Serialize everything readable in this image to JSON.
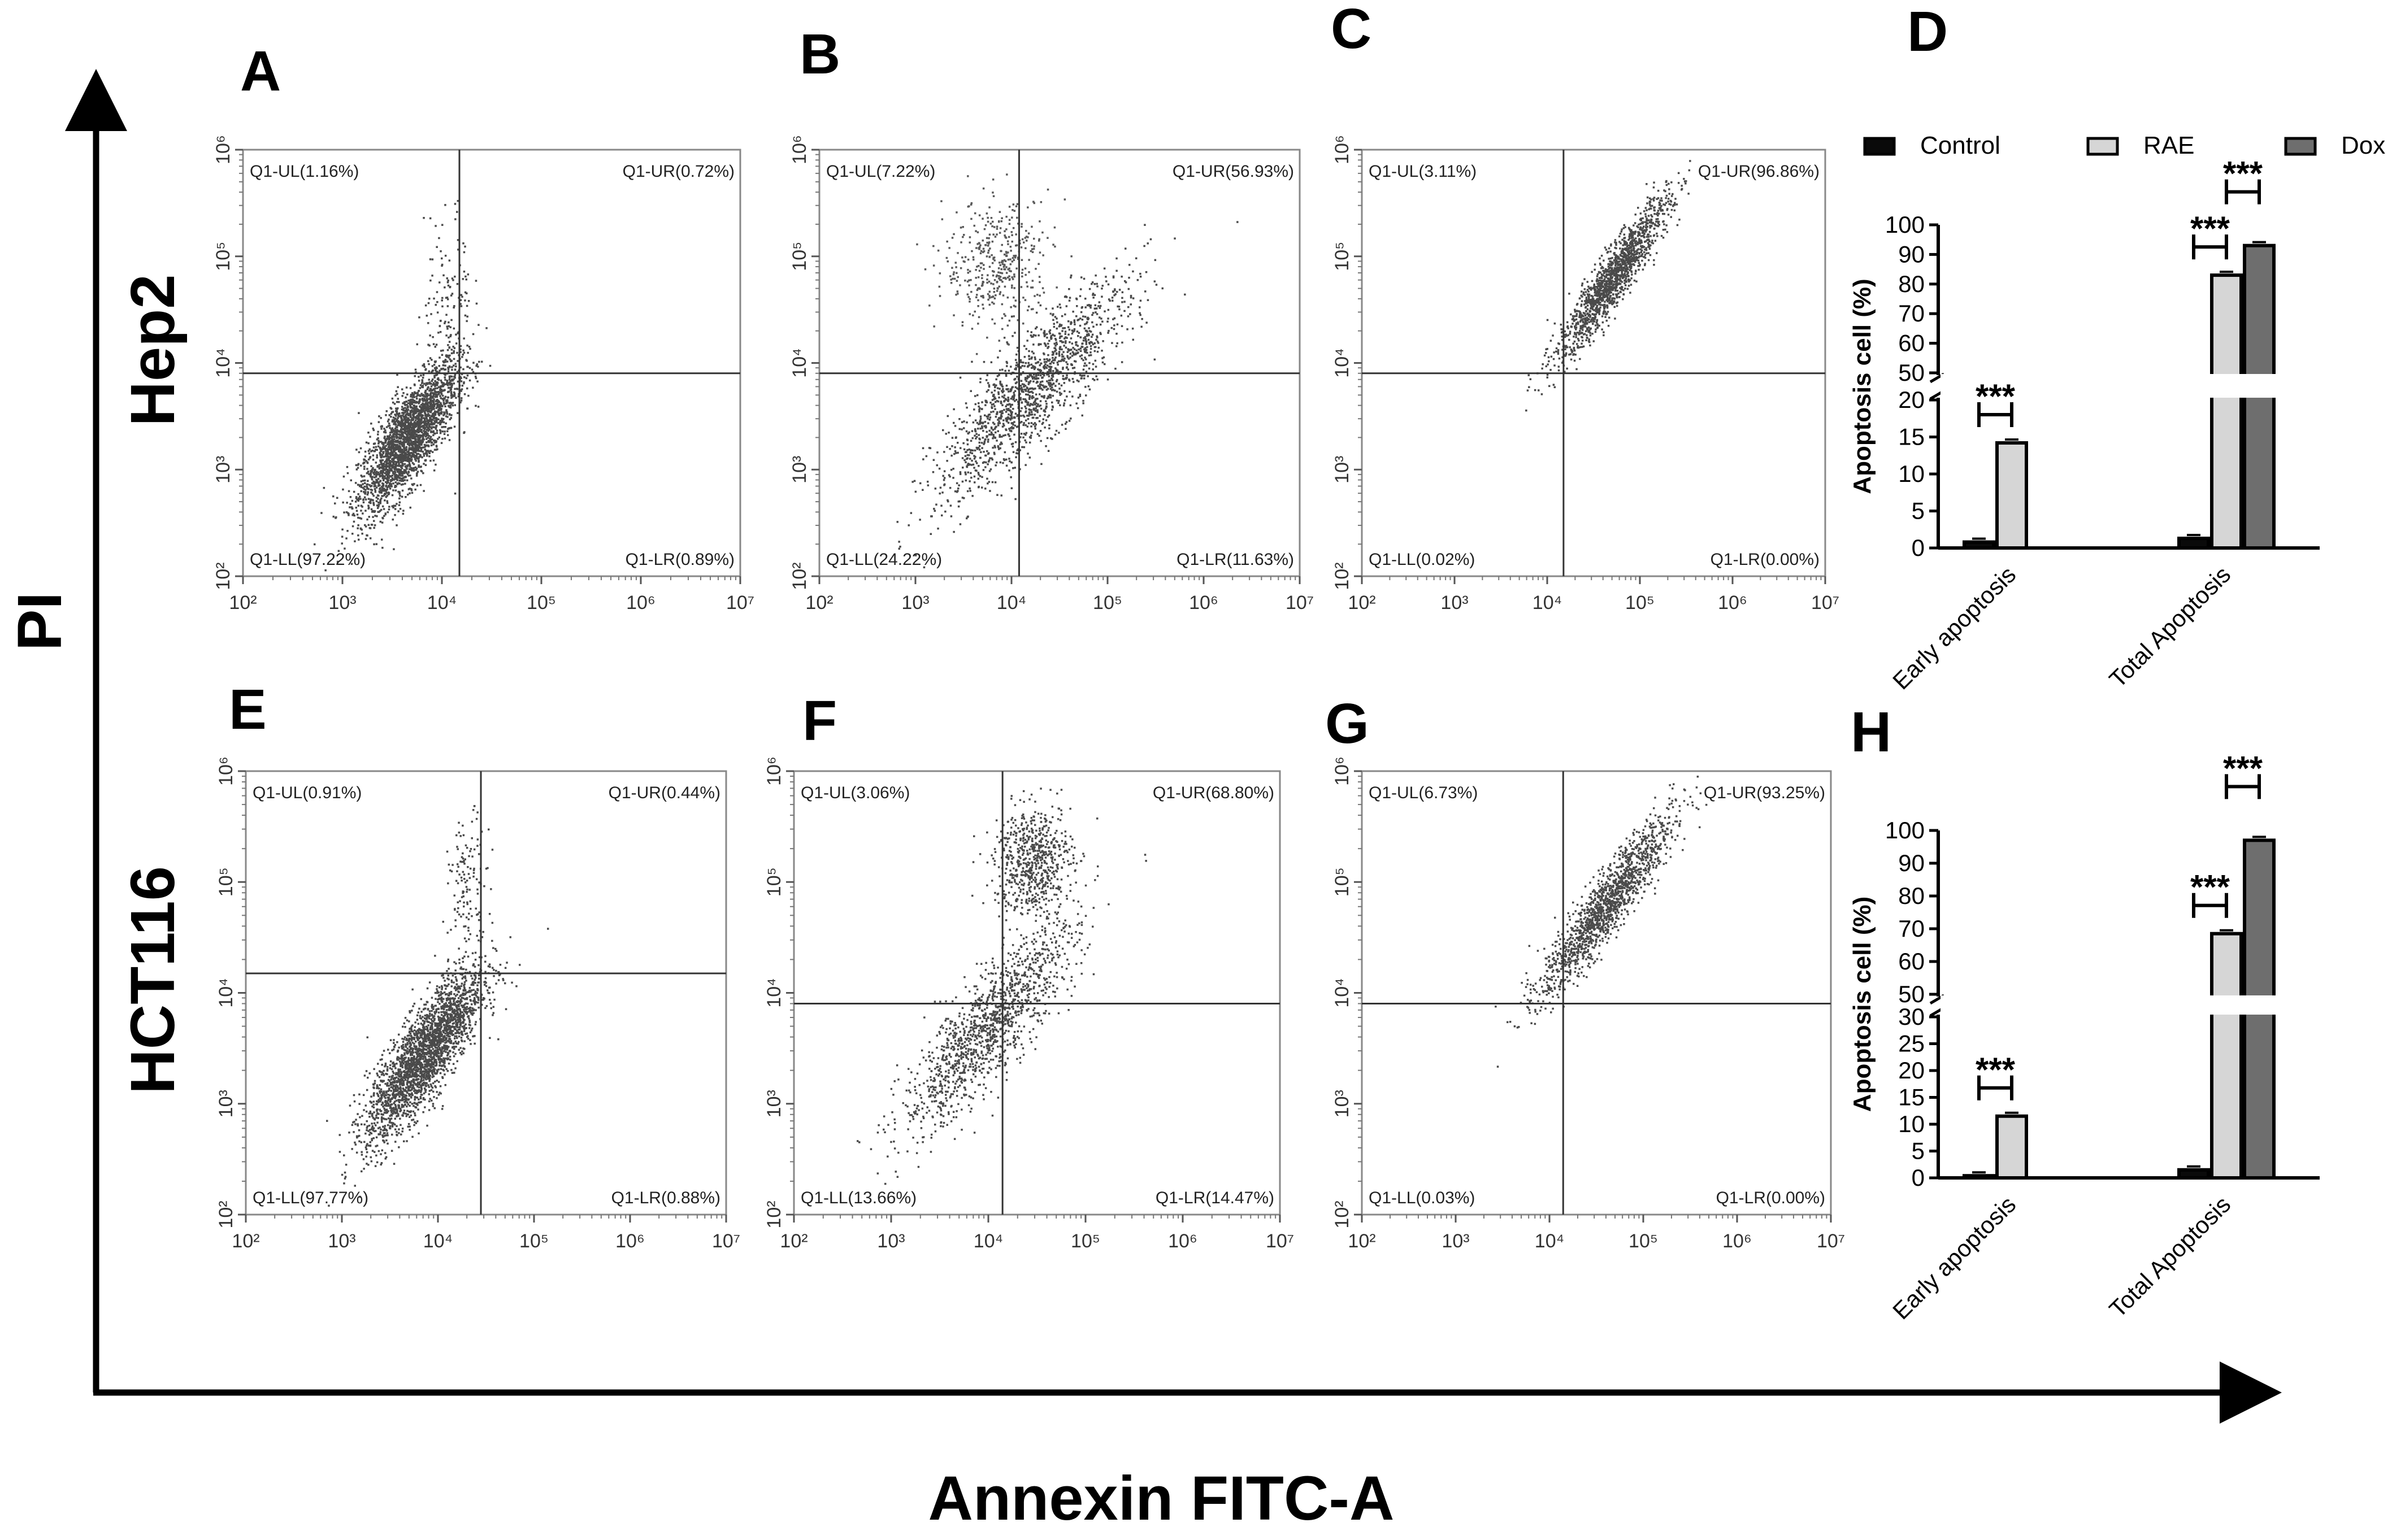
{
  "figure": {
    "row_labels": [
      "Hep2",
      "HCT116"
    ],
    "y_axis_title": "PI",
    "x_axis_title": "Annexin FITC-A",
    "colors": {
      "Control": "#0a0a0a",
      "RAE": "#d6d6d6",
      "Dox": "#6e6e6e"
    }
  },
  "chart_data": [
    {
      "panel": "A",
      "type": "scatter",
      "row": "Hep2",
      "x_scale": "log",
      "y_scale": "log",
      "xlim": [
        100,
        10000000
      ],
      "ylim": [
        100,
        1000000
      ],
      "x_ticks": [
        "10²",
        "10³",
        "10⁴",
        "10⁵",
        "10⁶",
        "10⁷"
      ],
      "y_ticks": [
        "10²",
        "10³",
        "10⁴",
        "10⁵",
        "10⁶"
      ],
      "gate": {
        "x": 15000,
        "y": 8000
      },
      "quadrants": {
        "UL": "Q1-UL(1.16%)",
        "UR": "Q1-UR(0.72%)",
        "LL": "Q1-LL(97.22%)",
        "LR": "Q1-LR(0.89%)"
      }
    },
    {
      "panel": "B",
      "type": "scatter",
      "row": "Hep2",
      "x_scale": "log",
      "y_scale": "log",
      "xlim": [
        100,
        10000000
      ],
      "ylim": [
        100,
        1000000
      ],
      "x_ticks": [
        "10²",
        "10³",
        "10⁴",
        "10⁵",
        "10⁶",
        "10⁷"
      ],
      "y_ticks": [
        "10²",
        "10³",
        "10⁴",
        "10⁵",
        "10⁶"
      ],
      "gate": {
        "x": 12000,
        "y": 8000
      },
      "quadrants": {
        "UL": "Q1-UL(7.22%)",
        "UR": "Q1-UR(56.93%)",
        "LL": "Q1-LL(24.22%)",
        "LR": "Q1-LR(11.63%)"
      }
    },
    {
      "panel": "C",
      "type": "scatter",
      "row": "Hep2",
      "x_scale": "log",
      "y_scale": "log",
      "xlim": [
        100,
        10000000
      ],
      "ylim": [
        100,
        1000000
      ],
      "x_ticks": [
        "10²",
        "10³",
        "10⁴",
        "10⁵",
        "10⁶",
        "10⁷"
      ],
      "y_ticks": [
        "10²",
        "10³",
        "10⁴",
        "10⁵",
        "10⁶"
      ],
      "gate": {
        "x": 15000,
        "y": 8000
      },
      "quadrants": {
        "UL": "Q1-UL(3.11%)",
        "UR": "Q1-UR(96.86%)",
        "LL": "Q1-LL(0.02%)",
        "LR": "Q1-LR(0.00%)"
      }
    },
    {
      "panel": "E",
      "type": "scatter",
      "row": "HCT116",
      "x_scale": "log",
      "y_scale": "log",
      "xlim": [
        100,
        10000000
      ],
      "ylim": [
        100,
        1000000
      ],
      "x_ticks": [
        "10²",
        "10³",
        "10⁴",
        "10⁵",
        "10⁶",
        "10⁷"
      ],
      "y_ticks": [
        "10²",
        "10³",
        "10⁴",
        "10⁵",
        "10⁶"
      ],
      "gate": {
        "x": 28000,
        "y": 15000
      },
      "quadrants": {
        "UL": "Q1-UL(0.91%)",
        "UR": "Q1-UR(0.44%)",
        "LL": "Q1-LL(97.77%)",
        "LR": "Q1-LR(0.88%)"
      }
    },
    {
      "panel": "F",
      "type": "scatter",
      "row": "HCT116",
      "x_scale": "log",
      "y_scale": "log",
      "xlim": [
        100,
        10000000
      ],
      "ylim": [
        100,
        1000000
      ],
      "x_ticks": [
        "10²",
        "10³",
        "10⁴",
        "10⁵",
        "10⁶",
        "10⁷"
      ],
      "y_ticks": [
        "10²",
        "10³",
        "10⁴",
        "10⁵",
        "10⁶"
      ],
      "gate": {
        "x": 14000,
        "y": 8000
      },
      "quadrants": {
        "UL": "Q1-UL(3.06%)",
        "UR": "Q1-UR(68.80%)",
        "LL": "Q1-LL(13.66%)",
        "LR": "Q1-LR(14.47%)"
      }
    },
    {
      "panel": "G",
      "type": "scatter",
      "row": "HCT116",
      "x_scale": "log",
      "y_scale": "log",
      "xlim": [
        100,
        10000000
      ],
      "ylim": [
        100,
        1000000
      ],
      "x_ticks": [
        "10²",
        "10³",
        "10⁴",
        "10⁵",
        "10⁶",
        "10⁷"
      ],
      "y_ticks": [
        "10²",
        "10³",
        "10⁴",
        "10⁵",
        "10⁶"
      ],
      "gate": {
        "x": 14000,
        "y": 8000
      },
      "quadrants": {
        "UL": "Q1-UL(6.73%)",
        "UR": "Q1-UR(93.25%)",
        "LL": "Q1-LL(0.03%)",
        "LR": "Q1-LR(0.00%)"
      }
    },
    {
      "panel": "D",
      "type": "bar",
      "row": "Hep2",
      "ylabel": "Apoptosis cell (%)",
      "categories": [
        "Early apoptosis",
        "Total Apoptosis"
      ],
      "legend": [
        "Control",
        "RAE",
        "Dox"
      ],
      "legend_placement": "top",
      "series": [
        {
          "name": "Control",
          "values": [
            0.8,
            1.3
          ]
        },
        {
          "name": "RAE",
          "values": [
            14.2,
            83
          ]
        },
        {
          "name": "Dox",
          "values": [
            null,
            93
          ]
        }
      ],
      "axis_break": [
        20,
        50
      ],
      "lower_ticks": [
        0,
        5,
        10,
        15,
        20
      ],
      "upper_ticks": [
        50,
        60,
        70,
        80,
        90,
        100
      ],
      "significance": [
        {
          "category": "Early apoptosis",
          "pair": [
            "Control",
            "RAE"
          ],
          "label": "***"
        },
        {
          "category": "Total Apoptosis",
          "pair": [
            "Control",
            "RAE"
          ],
          "label": "***"
        },
        {
          "category": "Total Apoptosis",
          "pair": [
            "RAE",
            "Dox"
          ],
          "label": "***"
        }
      ]
    },
    {
      "panel": "H",
      "type": "bar",
      "row": "HCT116",
      "ylabel": "Apoptosis cell (%)",
      "categories": [
        "Early apoptosis",
        "Total Apoptosis"
      ],
      "legend": [],
      "series": [
        {
          "name": "Control",
          "values": [
            0.4,
            1.5
          ]
        },
        {
          "name": "RAE",
          "values": [
            11.5,
            68.5
          ]
        },
        {
          "name": "Dox",
          "values": [
            null,
            97
          ]
        }
      ],
      "axis_break": [
        30,
        50
      ],
      "lower_ticks": [
        0,
        5,
        10,
        15,
        20,
        25,
        30
      ],
      "upper_ticks": [
        50,
        60,
        70,
        80,
        90,
        100
      ],
      "significance": [
        {
          "category": "Early apoptosis",
          "pair": [
            "Control",
            "RAE"
          ],
          "label": "***"
        },
        {
          "category": "Total Apoptosis",
          "pair": [
            "Control",
            "RAE"
          ],
          "label": "***"
        },
        {
          "category": "Total Apoptosis",
          "pair": [
            "RAE",
            "Dox"
          ],
          "label": "***"
        }
      ]
    }
  ]
}
